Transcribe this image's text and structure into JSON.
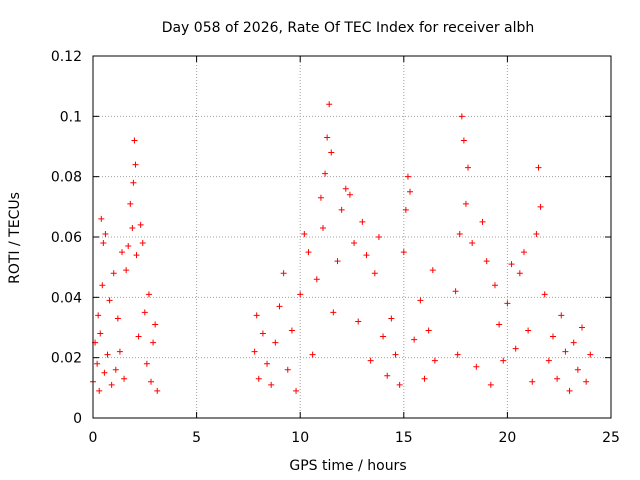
{
  "chart_data": {
    "type": "scatter",
    "title": "Day 058 of 2026, Rate Of TEC Index for receiver albh",
    "xlabel": "GPS time / hours",
    "ylabel": "ROTI / TECUs",
    "xlim": [
      0,
      25
    ],
    "ylim": [
      0,
      0.12
    ],
    "xticks": [
      0,
      5,
      10,
      15,
      20,
      25
    ],
    "xtick_labels": [
      "0",
      "5",
      "10",
      "15",
      "20",
      "25"
    ],
    "yticks": [
      0,
      0.02,
      0.04,
      0.06,
      0.08,
      0.1,
      0.12
    ],
    "ytick_labels": [
      "0",
      "0.02",
      "0.04",
      "0.06",
      "0.08",
      "0.1",
      "0.12"
    ],
    "grid": true,
    "marker": "+",
    "color": "#ff0000",
    "series": [
      {
        "points": [
          [
            0.0,
            0.012
          ],
          [
            0.1,
            0.025
          ],
          [
            0.2,
            0.018
          ],
          [
            0.25,
            0.034
          ],
          [
            0.3,
            0.009
          ],
          [
            0.35,
            0.028
          ],
          [
            0.4,
            0.066
          ],
          [
            0.45,
            0.044
          ],
          [
            0.5,
            0.058
          ],
          [
            0.55,
            0.015
          ],
          [
            0.6,
            0.061
          ],
          [
            0.7,
            0.021
          ],
          [
            0.8,
            0.039
          ],
          [
            0.9,
            0.011
          ],
          [
            1.0,
            0.048
          ],
          [
            1.1,
            0.016
          ],
          [
            1.2,
            0.033
          ],
          [
            1.3,
            0.022
          ],
          [
            1.4,
            0.055
          ],
          [
            1.5,
            0.013
          ],
          [
            1.6,
            0.049
          ],
          [
            1.7,
            0.057
          ],
          [
            1.8,
            0.071
          ],
          [
            1.9,
            0.063
          ],
          [
            1.95,
            0.078
          ],
          [
            2.0,
            0.092
          ],
          [
            2.05,
            0.084
          ],
          [
            2.1,
            0.054
          ],
          [
            2.2,
            0.027
          ],
          [
            2.3,
            0.064
          ],
          [
            2.4,
            0.058
          ],
          [
            2.5,
            0.035
          ],
          [
            2.6,
            0.018
          ],
          [
            2.7,
            0.041
          ],
          [
            2.8,
            0.012
          ],
          [
            2.9,
            0.025
          ],
          [
            3.0,
            0.031
          ],
          [
            3.1,
            0.009
          ],
          [
            7.8,
            0.022
          ],
          [
            7.9,
            0.034
          ],
          [
            8.0,
            0.013
          ],
          [
            8.2,
            0.028
          ],
          [
            8.4,
            0.018
          ],
          [
            8.6,
            0.011
          ],
          [
            8.8,
            0.025
          ],
          [
            9.0,
            0.037
          ],
          [
            9.2,
            0.048
          ],
          [
            9.4,
            0.016
          ],
          [
            9.6,
            0.029
          ],
          [
            9.8,
            0.009
          ],
          [
            10.0,
            0.041
          ],
          [
            10.2,
            0.061
          ],
          [
            10.4,
            0.055
          ],
          [
            10.6,
            0.021
          ],
          [
            10.8,
            0.046
          ],
          [
            11.0,
            0.073
          ],
          [
            11.1,
            0.063
          ],
          [
            11.2,
            0.081
          ],
          [
            11.3,
            0.093
          ],
          [
            11.4,
            0.104
          ],
          [
            11.5,
            0.088
          ],
          [
            11.6,
            0.035
          ],
          [
            11.8,
            0.052
          ],
          [
            12.0,
            0.069
          ],
          [
            12.2,
            0.076
          ],
          [
            12.4,
            0.074
          ],
          [
            12.6,
            0.058
          ],
          [
            12.8,
            0.032
          ],
          [
            13.0,
            0.065
          ],
          [
            13.2,
            0.054
          ],
          [
            13.4,
            0.019
          ],
          [
            13.6,
            0.048
          ],
          [
            13.8,
            0.06
          ],
          [
            14.0,
            0.027
          ],
          [
            14.2,
            0.014
          ],
          [
            14.4,
            0.033
          ],
          [
            14.6,
            0.021
          ],
          [
            14.8,
            0.011
          ],
          [
            15.0,
            0.055
          ],
          [
            15.1,
            0.069
          ],
          [
            15.2,
            0.08
          ],
          [
            15.3,
            0.075
          ],
          [
            15.5,
            0.026
          ],
          [
            15.8,
            0.039
          ],
          [
            16.0,
            0.013
          ],
          [
            16.2,
            0.029
          ],
          [
            16.4,
            0.049
          ],
          [
            16.5,
            0.019
          ],
          [
            17.5,
            0.042
          ],
          [
            17.6,
            0.021
          ],
          [
            17.7,
            0.061
          ],
          [
            17.8,
            0.1
          ],
          [
            17.9,
            0.092
          ],
          [
            18.0,
            0.071
          ],
          [
            18.1,
            0.083
          ],
          [
            18.3,
            0.058
          ],
          [
            18.5,
            0.017
          ],
          [
            18.8,
            0.065
          ],
          [
            19.0,
            0.052
          ],
          [
            19.2,
            0.011
          ],
          [
            19.4,
            0.044
          ],
          [
            19.6,
            0.031
          ],
          [
            19.8,
            0.019
          ],
          [
            20.0,
            0.038
          ],
          [
            20.2,
            0.051
          ],
          [
            20.4,
            0.023
          ],
          [
            20.6,
            0.048
          ],
          [
            20.8,
            0.055
          ],
          [
            21.0,
            0.029
          ],
          [
            21.2,
            0.012
          ],
          [
            21.4,
            0.061
          ],
          [
            21.5,
            0.083
          ],
          [
            21.6,
            0.07
          ],
          [
            21.8,
            0.041
          ],
          [
            22.0,
            0.019
          ],
          [
            22.2,
            0.027
          ],
          [
            22.4,
            0.013
          ],
          [
            22.6,
            0.034
          ],
          [
            22.8,
            0.022
          ],
          [
            23.0,
            0.009
          ],
          [
            23.2,
            0.025
          ],
          [
            23.4,
            0.016
          ],
          [
            23.6,
            0.03
          ],
          [
            23.8,
            0.012
          ],
          [
            24.0,
            0.021
          ]
        ]
      }
    ]
  }
}
